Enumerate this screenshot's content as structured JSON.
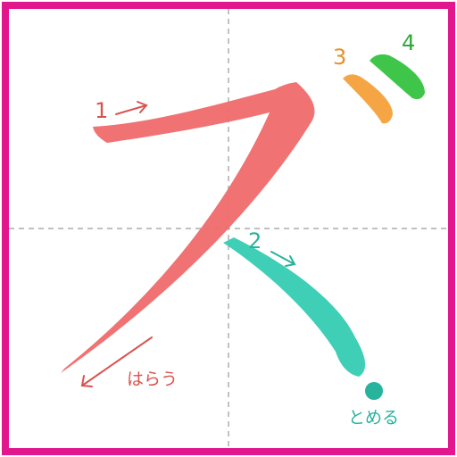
{
  "colors": {
    "frame": "#e2178e",
    "guide": "#9a9a9a",
    "stroke1": "#ef6a6a",
    "stroke2": "#3fcfb7",
    "stroke3": "#f5a544",
    "stroke4": "#3fc64a",
    "label1": "#d9534f",
    "label2": "#27b39c",
    "label3": "#e8902a",
    "label4": "#2eaa3a",
    "note_harau": "#d9534f",
    "note_tomeru": "#27b39c"
  },
  "diagram": {
    "stroke_numbers": [
      "1",
      "2",
      "3",
      "4"
    ],
    "notes": {
      "harau": "はらう",
      "tomeru": "とめる"
    }
  }
}
